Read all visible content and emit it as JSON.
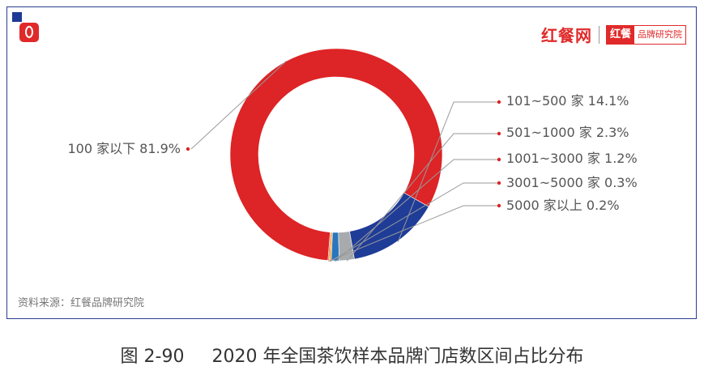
{
  "brand": {
    "name": "红餐网",
    "box_a": "红餐",
    "box_b": "品牌研究院"
  },
  "source": "资料来源：红餐品牌研究院",
  "caption": {
    "figure": "图 2-90",
    "title": "2020 年全国茶饮样本品牌门店数区间占比分布"
  },
  "chart_data": {
    "type": "pie",
    "donut": true,
    "categories": [
      "100 家以下",
      "101~500 家",
      "501~1000 家",
      "1001~3000 家",
      "3001~5000 家",
      "5000 家以上"
    ],
    "values": [
      81.9,
      14.1,
      2.3,
      1.2,
      0.3,
      0.2
    ],
    "colors": [
      "#dd2426",
      "#1f3c97",
      "#a8abad",
      "#2a76bd",
      "#f4a93b",
      "#e8531e"
    ],
    "labels": [
      "100 家以下 81.9%",
      "101~500 家 14.1%",
      "501~1000 家 2.3%",
      "1001~3000 家 1.2%",
      "3001~5000 家 0.3%",
      "5000 家以上 0.2%"
    ]
  }
}
